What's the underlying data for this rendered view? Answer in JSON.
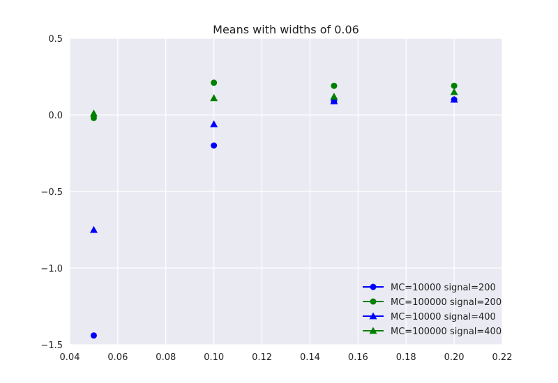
{
  "chart_data": {
    "type": "scatter",
    "title": "Means with widths of 0.06",
    "xlabel": "",
    "ylabel": "",
    "xlim": [
      0.04,
      0.22
    ],
    "ylim": [
      -1.5,
      0.5
    ],
    "x_ticks": [
      0.04,
      0.06,
      0.08,
      0.1,
      0.12,
      0.14,
      0.16,
      0.18,
      0.2,
      0.22
    ],
    "x_tick_labels": [
      "0.04",
      "0.06",
      "0.08",
      "0.10",
      "0.12",
      "0.14",
      "0.16",
      "0.18",
      "0.20",
      "0.22"
    ],
    "y_ticks": [
      0.5,
      0.0,
      -0.5,
      -1.0,
      -1.5
    ],
    "y_tick_labels": [
      "0.5",
      "0.0",
      "−0.5",
      "−1.0",
      "−1.5"
    ],
    "grid": true,
    "legend_position": "lower-right",
    "series": [
      {
        "name": "MC=10000 signal=200",
        "color": "#0000ff",
        "marker": "circle",
        "x": [
          0.05,
          0.1,
          0.15,
          0.2
        ],
        "y": [
          -1.44,
          -0.2,
          0.09,
          0.1
        ]
      },
      {
        "name": "MC=100000 signal=200",
        "color": "#008000",
        "marker": "circle",
        "x": [
          0.05,
          0.1,
          0.15,
          0.2
        ],
        "y": [
          -0.02,
          0.21,
          0.19,
          0.19
        ]
      },
      {
        "name": "MC=10000 signal=400",
        "color": "#0000ff",
        "marker": "triangle",
        "x": [
          0.05,
          0.1,
          0.15,
          0.2
        ],
        "y": [
          -0.75,
          -0.06,
          0.09,
          0.1
        ]
      },
      {
        "name": "MC=100000 signal=400",
        "color": "#008000",
        "marker": "triangle",
        "x": [
          0.05,
          0.1,
          0.15,
          0.2
        ],
        "y": [
          0.01,
          0.11,
          0.12,
          0.15
        ]
      }
    ]
  }
}
